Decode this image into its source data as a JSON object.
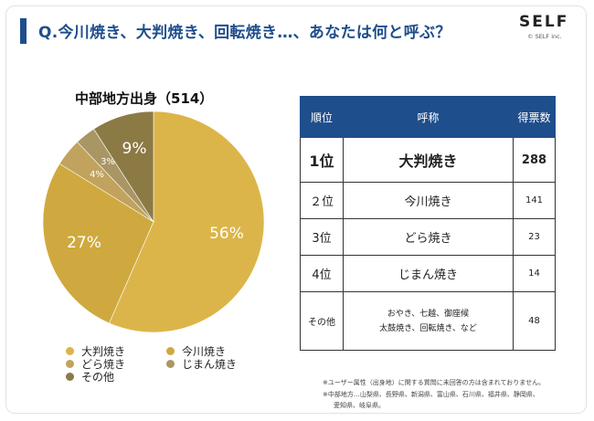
{
  "header": {
    "question": "Q.今川焼き、大判焼き、回転焼き…、あなたは何と呼ぶ？",
    "brand": "SELF",
    "brand_sub": "© SELF inc."
  },
  "chart_data": {
    "type": "pie",
    "title": "中部地方出身（514）",
    "legend_position": "bottom",
    "slices": [
      {
        "label": "大判焼き",
        "percent": 56,
        "label_text": "56%",
        "color": "#dcb54a"
      },
      {
        "label": "今川焼き",
        "percent": 27,
        "label_text": "27%",
        "color": "#cfa93f"
      },
      {
        "label": "どら焼き",
        "percent": 4,
        "label_text": "4%",
        "color": "#c1a35d"
      },
      {
        "label": "じまん焼き",
        "percent": 3,
        "label_text": "3%",
        "color": "#a99664"
      },
      {
        "label": "その他",
        "percent": 9,
        "label_text": "9%",
        "color": "#8c7a45"
      }
    ]
  },
  "table": {
    "headers": [
      "順位",
      "呼称",
      "得票数"
    ],
    "rows": [
      {
        "rank": "1位",
        "name": "大判焼き",
        "votes": "288"
      },
      {
        "rank": "２位",
        "name": "今川焼き",
        "votes": "141"
      },
      {
        "rank": "3位",
        "name": "どら焼き",
        "votes": "23"
      },
      {
        "rank": "4位",
        "name": "じまん焼き",
        "votes": "14"
      },
      {
        "rank": "その他",
        "name_line1": "おやき、七越、御座候",
        "name_line2": "太鼓焼き、回転焼き、など",
        "votes": "48"
      }
    ]
  },
  "notes": [
    "※ユーザー属性（出身地）に関する質問に未回答の方は含まれておりません。",
    "※中部地方…山梨県、長野県、新潟県、富山県、石川県、福井県、静岡県、",
    "愛知県、岐阜県。"
  ]
}
